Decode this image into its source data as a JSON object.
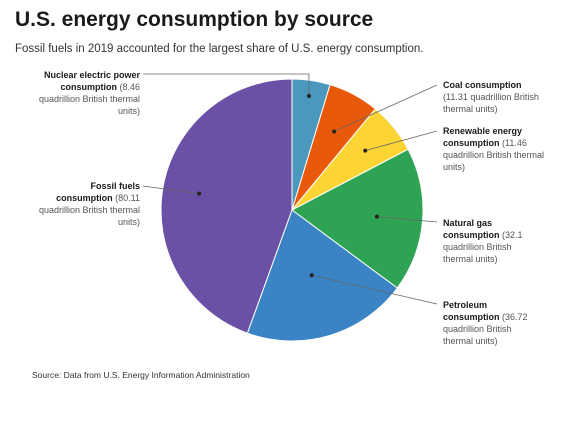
{
  "header": {
    "title": "U.S. energy consumption by source",
    "subtitle": "Fossil fuels in 2019 accounted for the largest share of U.S. energy consumption."
  },
  "footer": {
    "source": "Source: Data from U.S. Energy Information Administration"
  },
  "labels": {
    "nuclear": {
      "bold": "Nuclear electric power consumption",
      "rest": "(8.46 quadrillion British thermal units)"
    },
    "coal": {
      "bold": "Coal consumption",
      "rest": "(11.31 quadrillion British thermal units)"
    },
    "renewable": {
      "bold": "Renewable energy consumption",
      "rest": "(11.46 quadrillion British thermal units)"
    },
    "natural_gas": {
      "bold": "Natural gas consumption",
      "rest": "(32.1 quadrillion British thermal units)"
    },
    "petroleum": {
      "bold": "Petroleum consumption",
      "rest": "(36.72 quadrillion British thermal units)"
    },
    "fossil": {
      "bold": "Fossil fuels consumption",
      "rest": "(80.11 quadrillion British thermal units)"
    }
  },
  "chart_data": {
    "type": "pie",
    "title": "U.S. energy consumption by source",
    "unit": "quadrillion British thermal units",
    "slices": [
      {
        "key": "nuclear",
        "label": "Nuclear electric power consumption",
        "value": 8.46,
        "color": "#4a98be"
      },
      {
        "key": "coal",
        "label": "Coal consumption",
        "value": 11.31,
        "color": "#e8590c"
      },
      {
        "key": "renewable",
        "label": "Renewable energy consumption",
        "value": 11.46,
        "color": "#fcd535"
      },
      {
        "key": "natural_gas",
        "label": "Natural gas consumption",
        "value": 32.1,
        "color": "#2fa354"
      },
      {
        "key": "petroleum",
        "label": "Petroleum consumption",
        "value": 36.72,
        "color": "#3a83c4"
      },
      {
        "key": "fossil",
        "label": "Fossil fuels consumption",
        "value": 80.11,
        "color": "#6b51a6"
      }
    ]
  }
}
